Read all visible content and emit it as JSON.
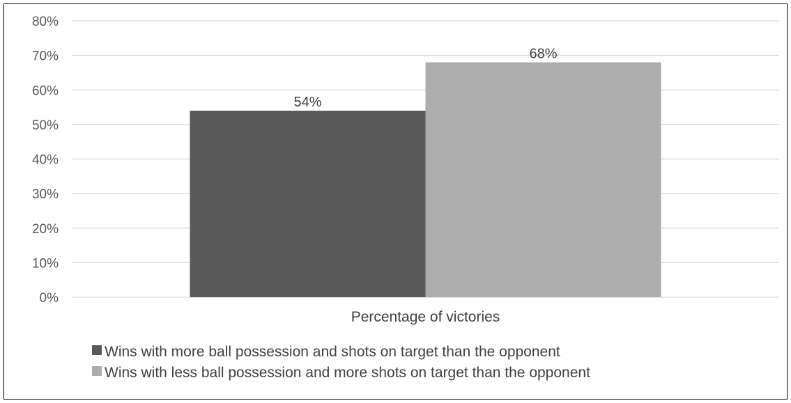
{
  "chart_data": {
    "type": "bar",
    "categories": [
      "Percentage of victories"
    ],
    "series": [
      {
        "name": "Wins with more ball possession and shots on target than the opponent",
        "values": [
          54
        ],
        "data_label": "54%",
        "color": "#595959"
      },
      {
        "name": "Wins with less ball possession and more shots on target than the opponent",
        "values": [
          68
        ],
        "data_label": "68%",
        "color": "#adadad"
      }
    ],
    "y_ticks": [
      0,
      10,
      20,
      30,
      40,
      50,
      60,
      70,
      80
    ],
    "y_tick_labels": [
      "0%",
      "10%",
      "20%",
      "30%",
      "40%",
      "50%",
      "60%",
      "70%",
      "80%"
    ],
    "ylim": [
      0,
      80
    ],
    "y_unit": "%",
    "grid": true,
    "gridline_color": "#d9d9d9",
    "legend_placement": "bottom-left"
  }
}
